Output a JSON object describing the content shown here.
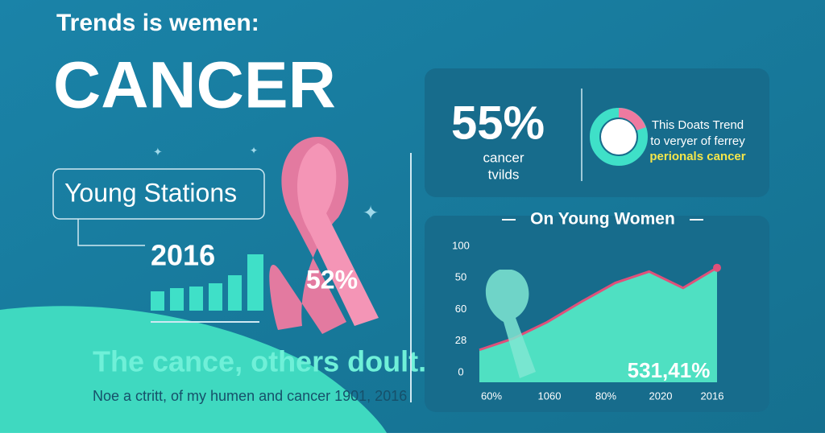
{
  "header": {
    "title": "Trends is wemen:",
    "headline": "CANCER"
  },
  "left": {
    "box_label": "Young Stations",
    "year": "2016",
    "ribbon_label": "52%",
    "tagline": "The cance, others doult.",
    "footnote": "Noe a ctritt, of my humen and cancer 1901, 2016"
  },
  "stat_panel": {
    "value": "55%",
    "caption": [
      "cancer",
      "tvilds"
    ],
    "note": [
      "This Doats Trend",
      "to veryer of ferrey",
      "perionals cancer"
    ]
  },
  "chart": {
    "type": "area",
    "title": "On Young Women",
    "y_labels": [
      "100",
      "50",
      "60",
      "28",
      "0"
    ],
    "x_labels": [
      "60%",
      "1060",
      "80%",
      "2020",
      "2016"
    ],
    "values": [
      18,
      27,
      40,
      56,
      71,
      80,
      67,
      83
    ],
    "ylim": [
      0,
      100
    ],
    "annotation": "531,41%",
    "line_color": "#e0507a",
    "area_color": "#4fe0c2"
  }
}
